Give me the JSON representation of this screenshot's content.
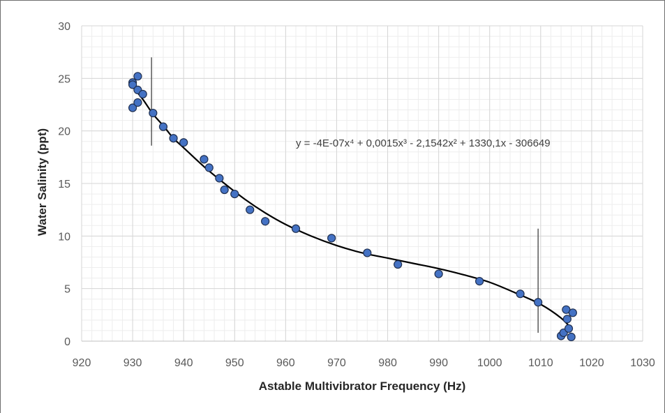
{
  "chart_data": {
    "type": "scatter",
    "xlabel": "Astable Multivibrator Frequency (Hz)",
    "ylabel": "Water Salinity (ppt)",
    "xlim": [
      920,
      1030
    ],
    "ylim": [
      0,
      30
    ],
    "x_ticks": [
      920,
      930,
      940,
      950,
      960,
      970,
      980,
      990,
      1000,
      1010,
      1020,
      1030
    ],
    "y_ticks": [
      0,
      5,
      10,
      15,
      20,
      25,
      30
    ],
    "grid": true,
    "trendline": {
      "type": "polynomial",
      "order": 4,
      "equation": "y = -4E-07x⁴ + 0,0015x³ - 2,1542x² + 1330,1x - 306649",
      "curve": [
        [
          930,
          24.2
        ],
        [
          932,
          23.0
        ],
        [
          934,
          21.6
        ],
        [
          936,
          20.5
        ],
        [
          938,
          19.3
        ],
        [
          940,
          18.4
        ],
        [
          944,
          16.6
        ],
        [
          948,
          15.0
        ],
        [
          952,
          13.5
        ],
        [
          956,
          12.2
        ],
        [
          960,
          11.1
        ],
        [
          965,
          10.0
        ],
        [
          970,
          9.1
        ],
        [
          975,
          8.4
        ],
        [
          980,
          7.9
        ],
        [
          985,
          7.4
        ],
        [
          990,
          6.9
        ],
        [
          995,
          6.3
        ],
        [
          1000,
          5.6
        ],
        [
          1005,
          4.6
        ],
        [
          1010,
          3.5
        ],
        [
          1014,
          2.2
        ],
        [
          1016,
          1.2
        ]
      ]
    },
    "markers": [
      {
        "x": 933.7,
        "y_range": [
          18.6,
          27
        ]
      },
      {
        "x": 1009.5,
        "y_range": [
          0.8,
          10.7
        ]
      }
    ],
    "series": [
      {
        "color": "#4472c4",
        "points": [
          [
            930,
            24.6
          ],
          [
            930,
            24.4
          ],
          [
            930,
            22.2
          ],
          [
            931,
            25.2
          ],
          [
            931,
            23.9
          ],
          [
            931,
            22.7
          ],
          [
            932,
            23.5
          ],
          [
            934,
            21.7
          ],
          [
            936,
            20.4
          ],
          [
            938,
            19.3
          ],
          [
            940,
            18.9
          ],
          [
            944,
            17.3
          ],
          [
            945,
            16.5
          ],
          [
            947,
            15.5
          ],
          [
            948,
            14.4
          ],
          [
            950,
            14.0
          ],
          [
            953,
            12.5
          ],
          [
            956,
            11.4
          ],
          [
            962,
            10.7
          ],
          [
            969,
            9.8
          ],
          [
            976,
            8.4
          ],
          [
            982,
            7.3
          ],
          [
            990,
            6.4
          ],
          [
            998,
            5.7
          ],
          [
            1006,
            4.5
          ],
          [
            1009.5,
            3.7
          ],
          [
            1014,
            0.5
          ],
          [
            1014.5,
            0.8
          ],
          [
            1015,
            3.0
          ],
          [
            1015.2,
            2.1
          ],
          [
            1015.5,
            1.2
          ],
          [
            1016,
            0.4
          ],
          [
            1016.3,
            2.7
          ]
        ]
      }
    ]
  }
}
